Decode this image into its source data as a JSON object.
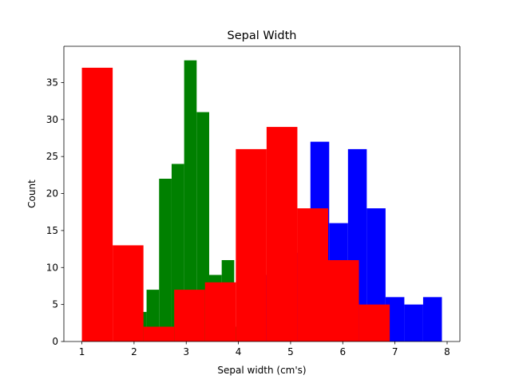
{
  "chart_data": {
    "type": "histogram",
    "title": "Sepal Width",
    "xlabel": "Sepal width (cm's)",
    "ylabel": "Count",
    "xlim": [
      0.655,
      8.245
    ],
    "ylim": [
      0,
      39.9
    ],
    "xticks": [
      "1",
      "2",
      "3",
      "4",
      "5",
      "6",
      "7",
      "8"
    ],
    "yticks": [
      "0",
      "5",
      "10",
      "15",
      "20",
      "25",
      "30",
      "35"
    ],
    "grid": false,
    "legend": "none",
    "series": [
      {
        "color": "#0000ff",
        "bins": [
          {
            "x0": 4.3,
            "x1": 4.66,
            "count": 9
          },
          {
            "x0": 4.66,
            "x1": 5.02,
            "count": 19
          },
          {
            "x0": 5.02,
            "x1": 5.38,
            "count": 12
          },
          {
            "x0": 5.38,
            "x1": 5.74,
            "count": 27
          },
          {
            "x0": 5.74,
            "x1": 6.1,
            "count": 16
          },
          {
            "x0": 6.1,
            "x1": 6.46,
            "count": 26
          },
          {
            "x0": 6.46,
            "x1": 6.82,
            "count": 18
          },
          {
            "x0": 6.82,
            "x1": 7.18,
            "count": 6
          },
          {
            "x0": 7.18,
            "x1": 7.54,
            "count": 5
          },
          {
            "x0": 7.54,
            "x1": 7.9,
            "count": 6
          }
        ]
      },
      {
        "color": "#008000",
        "bins": [
          {
            "x0": 2.0,
            "x1": 2.24,
            "count": 4
          },
          {
            "x0": 2.24,
            "x1": 2.48,
            "count": 7
          },
          {
            "x0": 2.48,
            "x1": 2.72,
            "count": 22
          },
          {
            "x0": 2.72,
            "x1": 2.96,
            "count": 24
          },
          {
            "x0": 2.96,
            "x1": 3.2,
            "count": 38
          },
          {
            "x0": 3.2,
            "x1": 3.44,
            "count": 31
          },
          {
            "x0": 3.44,
            "x1": 3.68,
            "count": 9
          },
          {
            "x0": 3.68,
            "x1": 3.92,
            "count": 11
          },
          {
            "x0": 3.92,
            "x1": 4.16,
            "count": 2
          },
          {
            "x0": 4.16,
            "x1": 4.4,
            "count": 2
          }
        ]
      },
      {
        "color": "#ff0000",
        "bins": [
          {
            "x0": 1.0,
            "x1": 1.59,
            "count": 37
          },
          {
            "x0": 1.59,
            "x1": 2.18,
            "count": 13
          },
          {
            "x0": 2.18,
            "x1": 2.77,
            "count": 2
          },
          {
            "x0": 2.77,
            "x1": 3.36,
            "count": 7
          },
          {
            "x0": 3.36,
            "x1": 3.95,
            "count": 8
          },
          {
            "x0": 3.95,
            "x1": 4.54,
            "count": 26
          },
          {
            "x0": 4.54,
            "x1": 5.13,
            "count": 29
          },
          {
            "x0": 5.13,
            "x1": 5.72,
            "count": 18
          },
          {
            "x0": 5.72,
            "x1": 6.31,
            "count": 11
          },
          {
            "x0": 6.31,
            "x1": 6.9,
            "count": 5
          }
        ]
      }
    ]
  }
}
